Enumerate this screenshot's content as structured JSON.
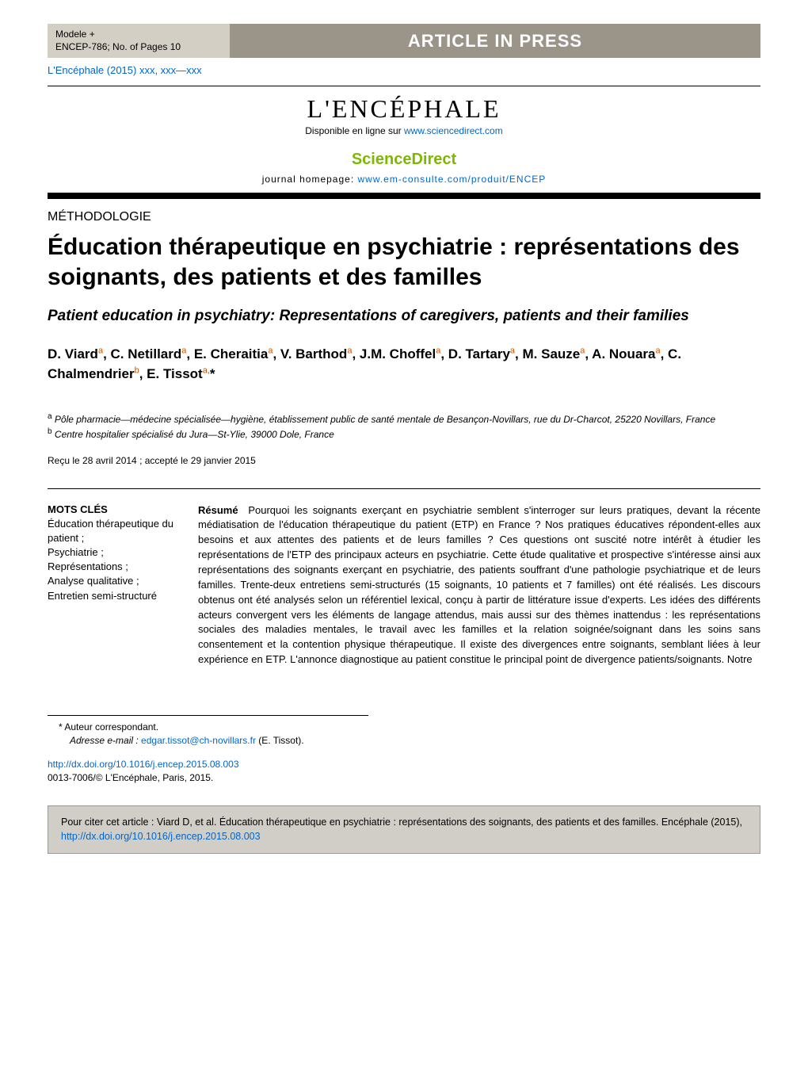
{
  "press_header": {
    "model_line": "Modele +",
    "ref_line": "ENCEP-786;   No. of Pages 10",
    "banner": "ARTICLE IN PRESS"
  },
  "citation_top": "L'Encéphale (2015) xxx, xxx—xxx",
  "journal": {
    "logo_text": "L'ENCÉPHALE",
    "available_prefix": "Disponible en ligne sur ",
    "available_link": "www.sciencedirect.com",
    "sciencedirect": "ScienceDirect",
    "homepage_prefix": "journal homepage: ",
    "homepage_link": "www.em-consulte.com/produit/ENCEP"
  },
  "section_type": "MÉTHODOLOGIE",
  "title_fr": "Éducation thérapeutique en psychiatrie : représentations des soignants, des patients et des familles",
  "title_en": "Patient education in psychiatry: Representations of caregivers, patients and their families",
  "authors_html": "D. Viard<sup>a</sup>, C. Netillard<sup>a</sup>, E. Cheraitia<sup>a</sup>, V. Barthod<sup>a</sup>, J.M. Choffel<sup>a</sup>, D. Tartary<sup>a</sup>, M. Sauze<sup>a</sup>, A. Nouara<sup>a</sup>, C. Chalmendrier<sup>b</sup>, E. Tissot<sup>a,</sup>*",
  "affiliations": {
    "a": "Pôle pharmacie—médecine spécialisée—hygiène, établissement public de santé mentale de Besançon-Novillars, rue du Dr-Charcot, 25220 Novillars, France",
    "b": "Centre hospitalier spécialisé du Jura—St-Ylie, 39000 Dole, France"
  },
  "dates": "Reçu le 28 avril 2014 ; accepté le 29 janvier 2015",
  "keywords": {
    "heading": "MOTS CLÉS",
    "items": "Éducation thérapeutique du patient ;\nPsychiatrie ;\nReprésentations ;\nAnalyse qualitative ;\nEntretien semi-structuré"
  },
  "abstract": {
    "lead": "Résumé",
    "body": "Pourquoi les soignants exerçant en psychiatrie semblent s'interroger sur leurs pratiques, devant la récente médiatisation de l'éducation thérapeutique du patient (ETP) en France ? Nos pratiques éducatives répondent-elles aux besoins et aux attentes des patients et de leurs familles ? Ces questions ont suscité notre intérêt à étudier les représentations de l'ETP des principaux acteurs en psychiatrie. Cette étude qualitative et prospective s'intéresse ainsi aux représentations des soignants exerçant en psychiatrie, des patients souffrant d'une pathologie psychiatrique et de leurs familles. Trente-deux entretiens semi-structurés (15 soignants, 10 patients et 7 familles) ont été réalisés. Les discours obtenus ont été analysés selon un référentiel lexical, conçu à partir de littérature issue d'experts. Les idées des différents acteurs convergent vers les éléments de langage attendus, mais aussi sur des thèmes inattendus : les représentations sociales des maladies mentales, le travail avec les familles et la relation soignée/soignant dans les soins sans consentement et la contention physique thérapeutique. Il existe des divergences entre soignants, semblant liées à leur expérience en ETP. L'annonce diagnostique au patient constitue le principal point de divergence patients/soignants. Notre"
  },
  "footnotes": {
    "corr_label": "* Auteur correspondant.",
    "email_label": "Adresse e-mail :",
    "email": "edgar.tissot@ch-novillars.fr",
    "email_who": "(E. Tissot)."
  },
  "doi": {
    "url": "http://dx.doi.org/10.1016/j.encep.2015.08.003",
    "copyright": "0013-7006/© L'Encéphale, Paris, 2015."
  },
  "cite_box": {
    "prefix": "Pour citer cet article : Viard D, et al. Éducation thérapeutique en psychiatrie : représentations des soignants, des patients et des familles. Encéphale (2015), ",
    "link": "http://dx.doi.org/10.1016/j.encep.2015.08.003"
  },
  "colors": {
    "link": "#0066cc",
    "banner_bg": "#9b9589",
    "banner_left_bg": "#d4cfc4",
    "sciencedirect": "#7fb800",
    "citebox_bg": "#d0cec7",
    "sup_affil": "#cc5500"
  }
}
